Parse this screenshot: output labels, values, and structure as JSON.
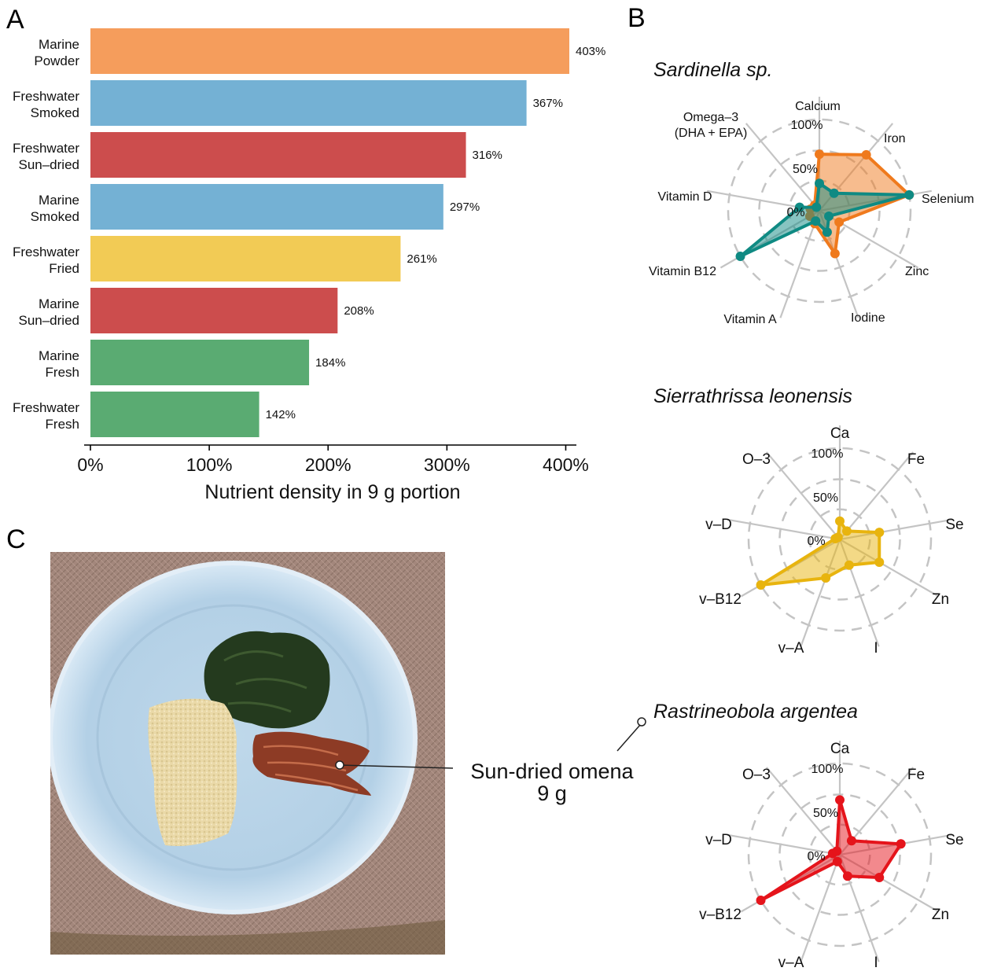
{
  "panels": {
    "a": "A",
    "b": "B",
    "c": "C"
  },
  "chart_data": [
    {
      "type": "bar",
      "orientation": "horizontal",
      "categories": [
        [
          "Marine",
          "Powder"
        ],
        [
          "Freshwater",
          "Smoked"
        ],
        [
          "Freshwater",
          "Sun–dried"
        ],
        [
          "Marine",
          "Smoked"
        ],
        [
          "Freshwater",
          "Fried"
        ],
        [
          "Marine",
          "Sun–dried"
        ],
        [
          "Marine",
          "Fresh"
        ],
        [
          "Freshwater",
          "Fresh"
        ]
      ],
      "values": [
        403,
        367,
        316,
        297,
        261,
        208,
        184,
        142
      ],
      "value_labels": [
        "403%",
        "367%",
        "316%",
        "297%",
        "261%",
        "208%",
        "184%",
        "142%"
      ],
      "colors": [
        "#f59d5c",
        "#74b1d4",
        "#cc4d4d",
        "#74b1d4",
        "#f2cb55",
        "#cc4d4d",
        "#5aab72",
        "#5aab72"
      ],
      "xlabel": "Nutrient density in 9 g portion",
      "xticks": [
        0,
        100,
        200,
        300,
        400
      ],
      "xtick_labels": [
        "0%",
        "100%",
        "200%",
        "300%",
        "400%"
      ],
      "xlim": [
        0,
        405
      ]
    },
    {
      "type": "radar",
      "title": "Sardinella sp.",
      "axes": [
        "Calcium",
        "Iron",
        "Selenium",
        "Zinc",
        "Iodine",
        "Vitamin A",
        "Vitamin B12",
        "Vitamin D",
        "Omega–3\n(DHA + EPA)"
      ],
      "rings": [
        0,
        50,
        100
      ],
      "ring_labels": [
        "0%",
        "50%",
        "100%"
      ],
      "rlim": [
        0,
        100
      ],
      "series": [
        {
          "color": "#ef7a1d",
          "values": [
            62,
            80,
            100,
            25,
            50,
            15,
            12,
            10,
            8
          ]
        },
        {
          "color": "#0f8a83",
          "values": [
            30,
            25,
            100,
            12,
            25,
            12,
            100,
            22,
            5
          ]
        }
      ]
    },
    {
      "type": "radar",
      "title": "Sierrathrissa leonensis",
      "axes": [
        "Ca",
        "Fe",
        "Se",
        "Zn",
        "I",
        "v–A",
        "v–B12",
        "v–D",
        "O–3"
      ],
      "rings": [
        0,
        50,
        100
      ],
      "ring_labels": [
        "0%",
        "50%",
        "100%"
      ],
      "rlim": [
        0,
        100
      ],
      "series": [
        {
          "color": "#e8b40e",
          "values": [
            20,
            12,
            44,
            50,
            30,
            45,
            100,
            5,
            3
          ]
        }
      ]
    },
    {
      "type": "radar",
      "title": "Rastrineobola argentea",
      "axes": [
        "Ca",
        "Fe",
        "Se",
        "Zn",
        "I",
        "v–A",
        "v–B12",
        "v–D",
        "O–3"
      ],
      "rings": [
        0,
        50,
        100
      ],
      "ring_labels": [
        "0%",
        "50%",
        "100%"
      ],
      "rlim": [
        0,
        100
      ],
      "series": [
        {
          "color": "#e5141b",
          "values": [
            60,
            20,
            68,
            50,
            25,
            8,
            100,
            8,
            5
          ]
        }
      ]
    }
  ],
  "photo": {
    "callout_lines": [
      "Sun-dried omena",
      "9 g"
    ]
  }
}
